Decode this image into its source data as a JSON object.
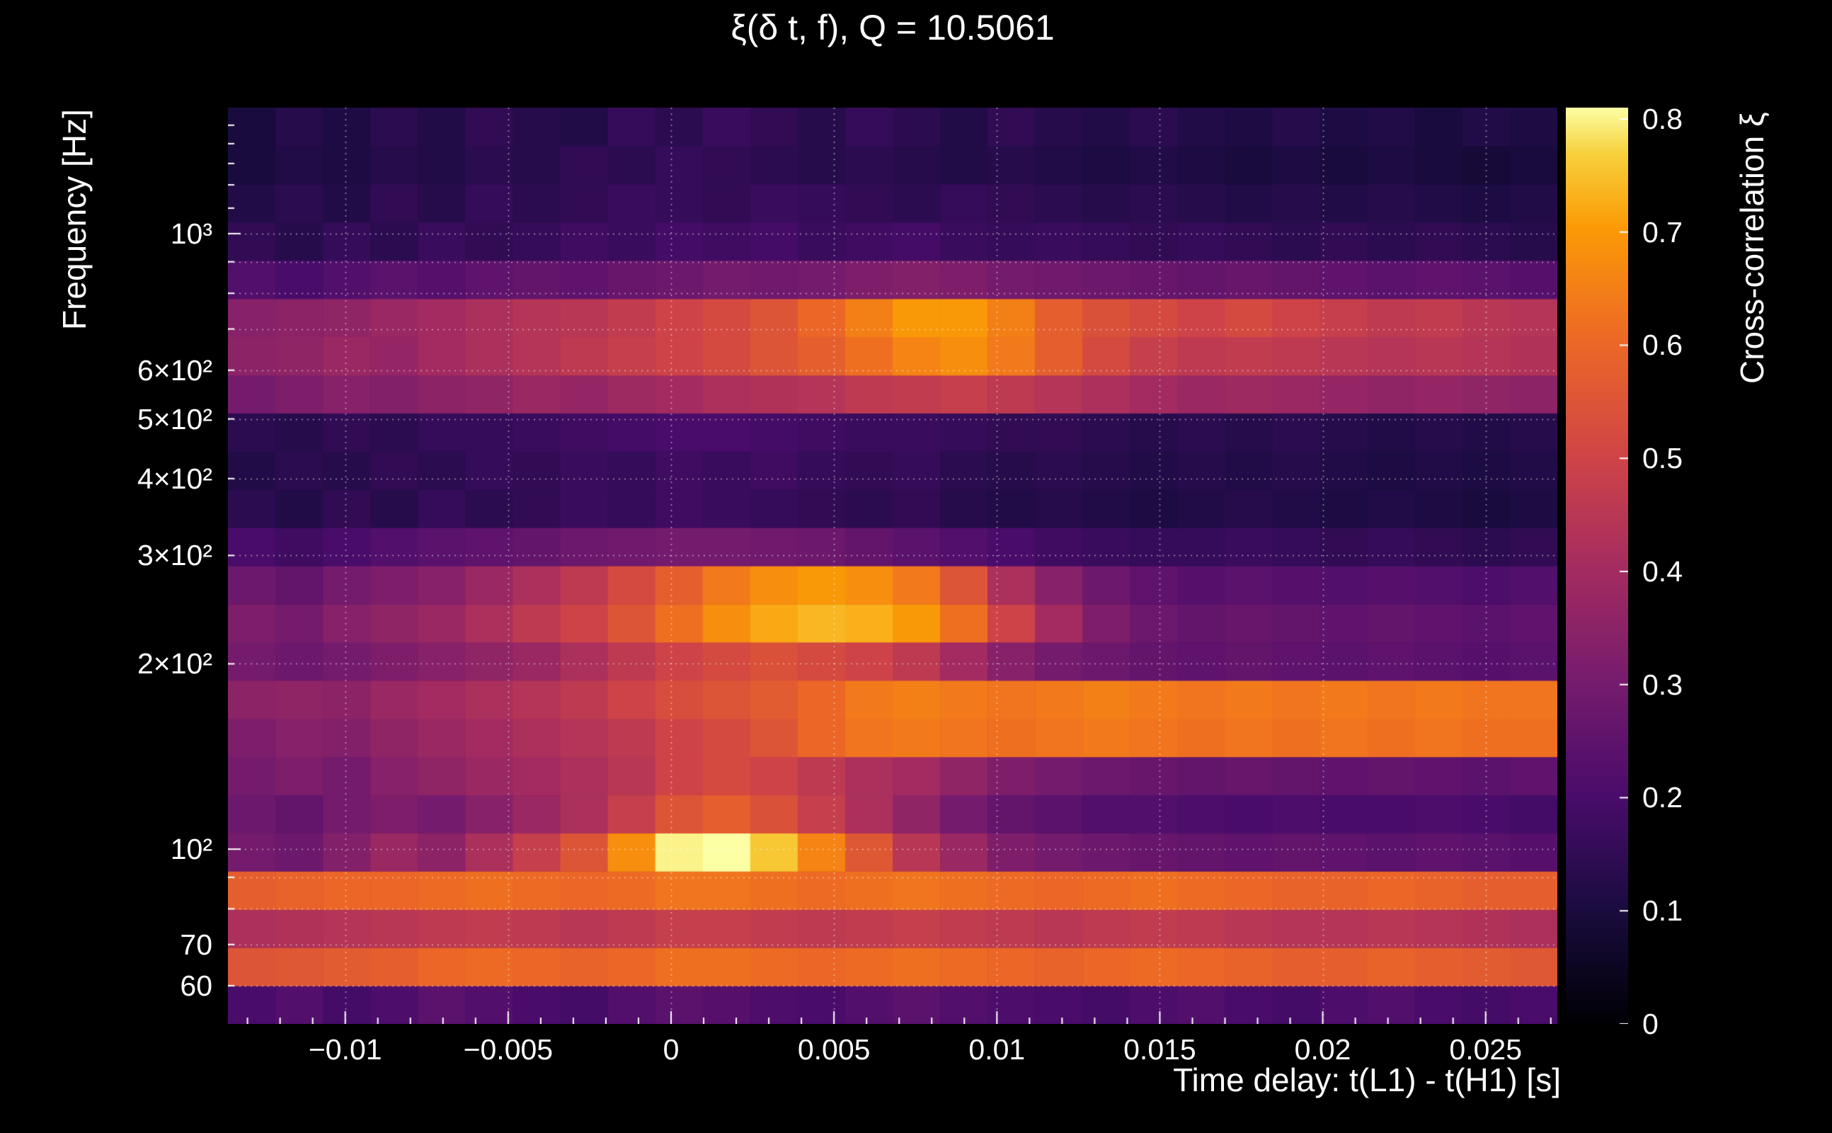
{
  "title": "ξ(δ t, f), Q = 10.5061",
  "chart_data": {
    "type": "heatmap",
    "title": "ξ(δ t, f), Q = 10.5061",
    "q_value": "10.5061",
    "xlabel": "Time delay: t(L1) - t(H1) [s]",
    "ylabel": "Frequency [Hz]",
    "colorbar_label": "Cross-correlation ξ",
    "x_range": [
      -0.0136,
      0.0272
    ],
    "x_minor_step": 0.001,
    "x_ticks": [
      {
        "value": -0.01,
        "label": "−0.01"
      },
      {
        "value": -0.005,
        "label": "−0.005"
      },
      {
        "value": 0,
        "label": "0"
      },
      {
        "value": 0.005,
        "label": "0.005"
      },
      {
        "value": 0.01,
        "label": "0.01"
      },
      {
        "value": 0.015,
        "label": "0.015"
      },
      {
        "value": 0.02,
        "label": "0.02"
      },
      {
        "value": 0.025,
        "label": "0.025"
      }
    ],
    "y_scale": "log",
    "y_range": [
      52,
      1602
    ],
    "y_ticks": [
      {
        "value": 1000,
        "label": "10³"
      },
      {
        "value": 600,
        "label": "6×10²"
      },
      {
        "value": 500,
        "label": "5×10²"
      },
      {
        "value": 400,
        "label": "4×10²"
      },
      {
        "value": 300,
        "label": "3×10²"
      },
      {
        "value": 200,
        "label": "2×10²"
      },
      {
        "value": 100,
        "label": "10²"
      },
      {
        "value": 70,
        "label": "70"
      },
      {
        "value": 60,
        "label": "60"
      }
    ],
    "y_gridlines": [
      60,
      70,
      80,
      90,
      100,
      200,
      300,
      400,
      500,
      600,
      700,
      800,
      900,
      1000
    ],
    "y_minor_ticks": [
      60,
      70,
      80,
      90,
      200,
      300,
      400,
      500,
      600,
      700,
      800,
      900,
      1100,
      1200,
      1300,
      1400,
      1500
    ],
    "y_major_ticks": [
      100,
      1000
    ],
    "colorbar": {
      "min": 0,
      "max": 0.81,
      "ticks": [
        {
          "value": 0,
          "label": "0"
        },
        {
          "value": 0.1,
          "label": "0.1"
        },
        {
          "value": 0.2,
          "label": "0.2"
        },
        {
          "value": 0.3,
          "label": "0.3"
        },
        {
          "value": 0.4,
          "label": "0.4"
        },
        {
          "value": 0.5,
          "label": "0.5"
        },
        {
          "value": 0.6,
          "label": "0.6"
        },
        {
          "value": 0.7,
          "label": "0.7"
        },
        {
          "value": 0.8,
          "label": "0.8"
        }
      ]
    },
    "colormap": "inferno",
    "colormap_stops": [
      [
        0.0,
        "#000004"
      ],
      [
        0.13,
        "#1b0c41"
      ],
      [
        0.25,
        "#4a0c6b"
      ],
      [
        0.38,
        "#781c6d"
      ],
      [
        0.5,
        "#a52c60"
      ],
      [
        0.62,
        "#cf4446"
      ],
      [
        0.75,
        "#ed6925"
      ],
      [
        0.87,
        "#fb9b06"
      ],
      [
        0.95,
        "#f7d03c"
      ],
      [
        1.0,
        "#fcffa4"
      ]
    ],
    "freq_edges": [
      52,
      60,
      69.2,
      79.8,
      92.1,
      106.2,
      122.5,
      141.3,
      163,
      188,
      217,
      250,
      288.6,
      333,
      384,
      443,
      511,
      589,
      680,
      784,
      905,
      1044,
      1204,
      1389,
      1602
    ],
    "values": [
      [
        0.2,
        0.22,
        0.19,
        0.21,
        0.24,
        0.22,
        0.2,
        0.19,
        0.22,
        0.24,
        0.23,
        0.21,
        0.2,
        0.22,
        0.24,
        0.22,
        0.21,
        0.2,
        0.19,
        0.21,
        0.22,
        0.2,
        0.19,
        0.21,
        0.22,
        0.2,
        0.19,
        0.2
      ],
      [
        0.55,
        0.56,
        0.57,
        0.58,
        0.6,
        0.61,
        0.6,
        0.59,
        0.6,
        0.62,
        0.62,
        0.61,
        0.6,
        0.61,
        0.62,
        0.61,
        0.6,
        0.59,
        0.6,
        0.61,
        0.6,
        0.59,
        0.58,
        0.58,
        0.59,
        0.58,
        0.57,
        0.56
      ],
      [
        0.42,
        0.43,
        0.44,
        0.45,
        0.46,
        0.47,
        0.46,
        0.45,
        0.46,
        0.48,
        0.48,
        0.47,
        0.46,
        0.47,
        0.48,
        0.47,
        0.46,
        0.45,
        0.46,
        0.47,
        0.46,
        0.45,
        0.44,
        0.44,
        0.45,
        0.44,
        0.43,
        0.42
      ],
      [
        0.58,
        0.59,
        0.6,
        0.6,
        0.61,
        0.62,
        0.61,
        0.6,
        0.61,
        0.63,
        0.63,
        0.62,
        0.61,
        0.62,
        0.63,
        0.62,
        0.61,
        0.6,
        0.61,
        0.62,
        0.61,
        0.6,
        0.59,
        0.59,
        0.6,
        0.59,
        0.58,
        0.58
      ],
      [
        0.3,
        0.28,
        0.33,
        0.38,
        0.35,
        0.42,
        0.48,
        0.55,
        0.68,
        0.8,
        0.81,
        0.76,
        0.66,
        0.56,
        0.45,
        0.38,
        0.32,
        0.3,
        0.28,
        0.27,
        0.26,
        0.25,
        0.26,
        0.25,
        0.24,
        0.25,
        0.24,
        0.23
      ],
      [
        0.28,
        0.26,
        0.3,
        0.32,
        0.3,
        0.34,
        0.38,
        0.42,
        0.48,
        0.55,
        0.58,
        0.54,
        0.48,
        0.42,
        0.36,
        0.3,
        0.26,
        0.24,
        0.22,
        0.22,
        0.21,
        0.2,
        0.21,
        0.2,
        0.2,
        0.21,
        0.2,
        0.19
      ],
      [
        0.3,
        0.32,
        0.3,
        0.34,
        0.36,
        0.38,
        0.4,
        0.42,
        0.45,
        0.5,
        0.52,
        0.5,
        0.46,
        0.42,
        0.4,
        0.36,
        0.32,
        0.3,
        0.28,
        0.27,
        0.26,
        0.27,
        0.26,
        0.25,
        0.26,
        0.25,
        0.24,
        0.25
      ],
      [
        0.32,
        0.34,
        0.33,
        0.36,
        0.38,
        0.4,
        0.42,
        0.44,
        0.46,
        0.5,
        0.52,
        0.55,
        0.6,
        0.63,
        0.64,
        0.63,
        0.62,
        0.63,
        0.64,
        0.63,
        0.62,
        0.63,
        0.62,
        0.63,
        0.62,
        0.63,
        0.62,
        0.62
      ],
      [
        0.35,
        0.36,
        0.35,
        0.38,
        0.4,
        0.42,
        0.44,
        0.46,
        0.5,
        0.53,
        0.55,
        0.57,
        0.6,
        0.64,
        0.65,
        0.64,
        0.63,
        0.64,
        0.65,
        0.64,
        0.63,
        0.64,
        0.63,
        0.64,
        0.63,
        0.64,
        0.63,
        0.63
      ],
      [
        0.3,
        0.28,
        0.3,
        0.32,
        0.34,
        0.36,
        0.38,
        0.42,
        0.46,
        0.5,
        0.52,
        0.54,
        0.52,
        0.5,
        0.46,
        0.4,
        0.34,
        0.3,
        0.28,
        0.26,
        0.25,
        0.26,
        0.25,
        0.24,
        0.25,
        0.24,
        0.23,
        0.24
      ],
      [
        0.32,
        0.3,
        0.34,
        0.36,
        0.38,
        0.42,
        0.46,
        0.5,
        0.55,
        0.62,
        0.68,
        0.72,
        0.74,
        0.73,
        0.7,
        0.62,
        0.5,
        0.4,
        0.32,
        0.28,
        0.26,
        0.27,
        0.26,
        0.25,
        0.26,
        0.25,
        0.24,
        0.25
      ],
      [
        0.28,
        0.26,
        0.3,
        0.32,
        0.34,
        0.38,
        0.42,
        0.46,
        0.52,
        0.58,
        0.64,
        0.68,
        0.7,
        0.68,
        0.64,
        0.55,
        0.42,
        0.34,
        0.28,
        0.25,
        0.23,
        0.24,
        0.23,
        0.22,
        0.23,
        0.22,
        0.21,
        0.22
      ],
      [
        0.2,
        0.18,
        0.2,
        0.22,
        0.24,
        0.25,
        0.26,
        0.28,
        0.29,
        0.3,
        0.3,
        0.29,
        0.28,
        0.26,
        0.24,
        0.22,
        0.2,
        0.18,
        0.17,
        0.16,
        0.16,
        0.17,
        0.16,
        0.15,
        0.16,
        0.15,
        0.14,
        0.15
      ],
      [
        0.14,
        0.12,
        0.15,
        0.13,
        0.16,
        0.14,
        0.15,
        0.17,
        0.16,
        0.18,
        0.17,
        0.16,
        0.15,
        0.14,
        0.15,
        0.13,
        0.12,
        0.13,
        0.12,
        0.11,
        0.12,
        0.13,
        0.12,
        0.11,
        0.12,
        0.11,
        0.1,
        0.11
      ],
      [
        0.12,
        0.14,
        0.13,
        0.15,
        0.14,
        0.16,
        0.15,
        0.17,
        0.16,
        0.18,
        0.17,
        0.18,
        0.16,
        0.15,
        0.16,
        0.14,
        0.13,
        0.14,
        0.13,
        0.12,
        0.13,
        0.12,
        0.13,
        0.12,
        0.11,
        0.12,
        0.11,
        0.12
      ],
      [
        0.14,
        0.13,
        0.15,
        0.14,
        0.16,
        0.16,
        0.17,
        0.18,
        0.19,
        0.2,
        0.2,
        0.19,
        0.18,
        0.17,
        0.17,
        0.16,
        0.15,
        0.15,
        0.14,
        0.13,
        0.14,
        0.13,
        0.14,
        0.13,
        0.12,
        0.13,
        0.12,
        0.13
      ],
      [
        0.3,
        0.32,
        0.34,
        0.33,
        0.35,
        0.36,
        0.38,
        0.37,
        0.39,
        0.4,
        0.42,
        0.43,
        0.44,
        0.46,
        0.47,
        0.48,
        0.46,
        0.44,
        0.42,
        0.4,
        0.38,
        0.39,
        0.38,
        0.37,
        0.36,
        0.37,
        0.36,
        0.35
      ],
      [
        0.35,
        0.36,
        0.38,
        0.37,
        0.4,
        0.42,
        0.44,
        0.46,
        0.48,
        0.5,
        0.52,
        0.55,
        0.58,
        0.62,
        0.66,
        0.68,
        0.64,
        0.58,
        0.52,
        0.48,
        0.46,
        0.47,
        0.46,
        0.45,
        0.44,
        0.45,
        0.44,
        0.43
      ],
      [
        0.34,
        0.35,
        0.36,
        0.38,
        0.4,
        0.42,
        0.44,
        0.45,
        0.47,
        0.5,
        0.52,
        0.55,
        0.6,
        0.65,
        0.7,
        0.7,
        0.65,
        0.58,
        0.54,
        0.52,
        0.5,
        0.52,
        0.5,
        0.48,
        0.46,
        0.47,
        0.45,
        0.44
      ],
      [
        0.22,
        0.2,
        0.22,
        0.24,
        0.23,
        0.25,
        0.26,
        0.25,
        0.27,
        0.28,
        0.3,
        0.29,
        0.3,
        0.32,
        0.33,
        0.32,
        0.3,
        0.29,
        0.28,
        0.27,
        0.26,
        0.27,
        0.26,
        0.25,
        0.24,
        0.25,
        0.24,
        0.23
      ],
      [
        0.15,
        0.13,
        0.16,
        0.14,
        0.17,
        0.15,
        0.16,
        0.18,
        0.17,
        0.19,
        0.18,
        0.19,
        0.17,
        0.18,
        0.19,
        0.17,
        0.16,
        0.17,
        0.16,
        0.15,
        0.16,
        0.15,
        0.14,
        0.15,
        0.14,
        0.15,
        0.14,
        0.13
      ],
      [
        0.12,
        0.14,
        0.12,
        0.15,
        0.13,
        0.16,
        0.14,
        0.15,
        0.17,
        0.16,
        0.15,
        0.17,
        0.16,
        0.15,
        0.14,
        0.16,
        0.15,
        0.14,
        0.13,
        0.14,
        0.13,
        0.12,
        0.13,
        0.12,
        0.13,
        0.12,
        0.11,
        0.12
      ],
      [
        0.1,
        0.12,
        0.11,
        0.13,
        0.12,
        0.14,
        0.13,
        0.15,
        0.14,
        0.16,
        0.15,
        0.14,
        0.13,
        0.14,
        0.13,
        0.12,
        0.13,
        0.12,
        0.11,
        0.12,
        0.11,
        0.1,
        0.11,
        0.1,
        0.11,
        0.1,
        0.09,
        0.1
      ],
      [
        0.1,
        0.13,
        0.11,
        0.14,
        0.12,
        0.15,
        0.13,
        0.12,
        0.16,
        0.14,
        0.17,
        0.15,
        0.13,
        0.16,
        0.14,
        0.12,
        0.15,
        0.13,
        0.12,
        0.14,
        0.12,
        0.11,
        0.13,
        0.11,
        0.12,
        0.1,
        0.12,
        0.11
      ]
    ]
  }
}
